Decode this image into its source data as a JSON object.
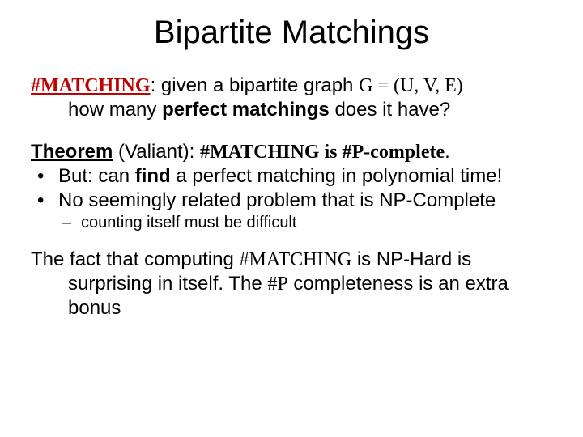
{
  "title": "Bipartite Matchings",
  "def": {
    "hash_matching": "#MATCHING",
    "colon": ": ",
    "given": "given a bipartite graph ",
    "graph": "G = (U, V, E)",
    "line2a": "how many ",
    "line2b": "perfect matchings",
    "line2c": " does it have?"
  },
  "theorem": {
    "label": "Theorem",
    "paren": " (Valiant): ",
    "stmt": "#MATCHING is #P-complete",
    "period": "."
  },
  "bullets": [
    {
      "dot": "•",
      "pre": "But: can ",
      "bold": "find",
      "post": " a perfect matching in polynomial time!"
    },
    {
      "dot": "•",
      "pre": "No seemingly related problem that is NP-Complete",
      "bold": "",
      "post": ""
    }
  ],
  "dash": {
    "mark": "–",
    "text": "counting itself must be difficult"
  },
  "para": {
    "p1a": "The fact that computing ",
    "p1b": "#MATCHING",
    "p1c": " is NP-Hard is",
    "p2a": "surprising in itself. The ",
    "p2b": "#P",
    "p2c": " completeness is an extra bonus"
  },
  "colors": {
    "red": "#c00000",
    "text": "#000000",
    "background": "#ffffff"
  },
  "typography": {
    "title_fontsize": 40,
    "body_fontsize": 24,
    "dash_fontsize": 20,
    "comic_font": "Comic Sans MS",
    "body_font": "Arial"
  }
}
